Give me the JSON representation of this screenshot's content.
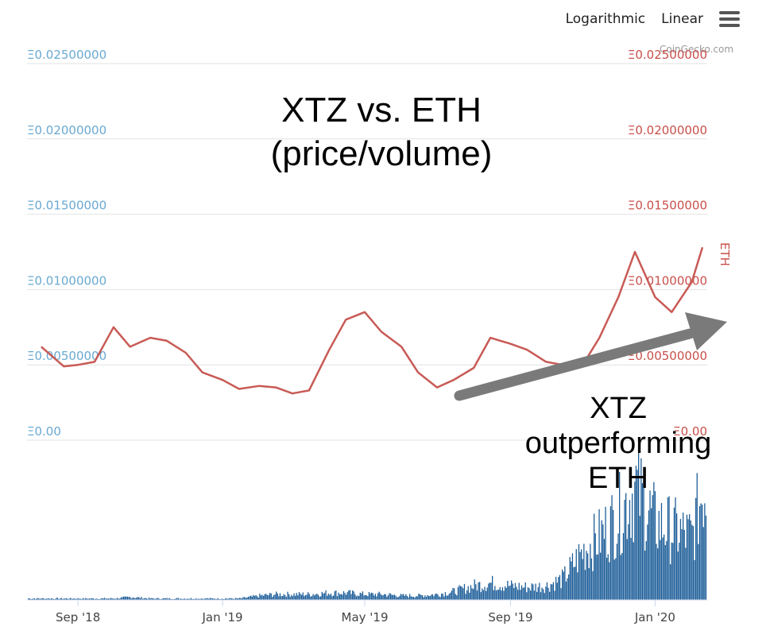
{
  "toolbar": {
    "log_label": "Logarithmic",
    "linear_label": "Linear",
    "menu_icon": "hamburger-menu-icon"
  },
  "credits": "CoinGecko.com",
  "annotations": {
    "title_line1": "XTZ vs. ETH",
    "title_line2": "(price/volume)",
    "note_line1": "XTZ",
    "note_line2": "outperforming",
    "note_line3": "ETH"
  },
  "colors": {
    "price_line": "#c85a55",
    "volume_bars": "#1f5f99",
    "left_axis": "#6aa9d1",
    "right_axis": "#c8504a",
    "arrow": "#7a7a7a"
  },
  "chart_data": {
    "type": "line",
    "series_axis_title": "ETH",
    "y_ticks_left": [
      "Ξ0.00",
      "Ξ0.00500000",
      "Ξ0.01000000",
      "Ξ0.01500000",
      "Ξ0.02000000",
      "Ξ0.02500000"
    ],
    "y_ticks_right": [
      "Ξ0.00",
      "Ξ0.00500000",
      "Ξ0.01000000",
      "Ξ0.01500000",
      "Ξ0.02000000",
      "Ξ0.02500000"
    ],
    "ylim": [
      0,
      0.025
    ],
    "x_ticks": [
      "Sep '18",
      "Jan '19",
      "May '19",
      "Sep '19",
      "Jan '20"
    ],
    "x": [
      "2018-08-01",
      "2018-08-20",
      "2018-09-01",
      "2018-09-15",
      "2018-10-01",
      "2018-10-15",
      "2018-11-01",
      "2018-11-15",
      "2018-12-01",
      "2018-12-15",
      "2019-01-01",
      "2019-01-15",
      "2019-02-01",
      "2019-02-15",
      "2019-03-01",
      "2019-03-15",
      "2019-04-01",
      "2019-04-15",
      "2019-05-01",
      "2019-05-15",
      "2019-06-01",
      "2019-06-15",
      "2019-07-01",
      "2019-07-15",
      "2019-08-01",
      "2019-08-15",
      "2019-09-01",
      "2019-09-15",
      "2019-10-01",
      "2019-10-15",
      "2019-11-01",
      "2019-11-15",
      "2019-12-01",
      "2019-12-15",
      "2020-01-01",
      "2020-01-15",
      "2020-02-01",
      "2020-02-10"
    ],
    "price": [
      0.0062,
      0.0049,
      0.005,
      0.0052,
      0.0075,
      0.0062,
      0.0068,
      0.0066,
      0.0058,
      0.0045,
      0.004,
      0.0034,
      0.0036,
      0.0035,
      0.0031,
      0.0033,
      0.006,
      0.008,
      0.0085,
      0.0072,
      0.0062,
      0.0045,
      0.0035,
      0.004,
      0.0048,
      0.0068,
      0.0064,
      0.006,
      0.0052,
      0.005,
      0.005,
      0.0068,
      0.0095,
      0.0125,
      0.0095,
      0.0085,
      0.0105,
      0.0128
    ],
    "volume": [
      1,
      1,
      1,
      1,
      1,
      2,
      1,
      1,
      1,
      1,
      1,
      1,
      3,
      4,
      4,
      4,
      5,
      5,
      4,
      4,
      3,
      3,
      4,
      6,
      10,
      12,
      10,
      9,
      10,
      15,
      35,
      45,
      60,
      80,
      55,
      50,
      45,
      80
    ]
  }
}
